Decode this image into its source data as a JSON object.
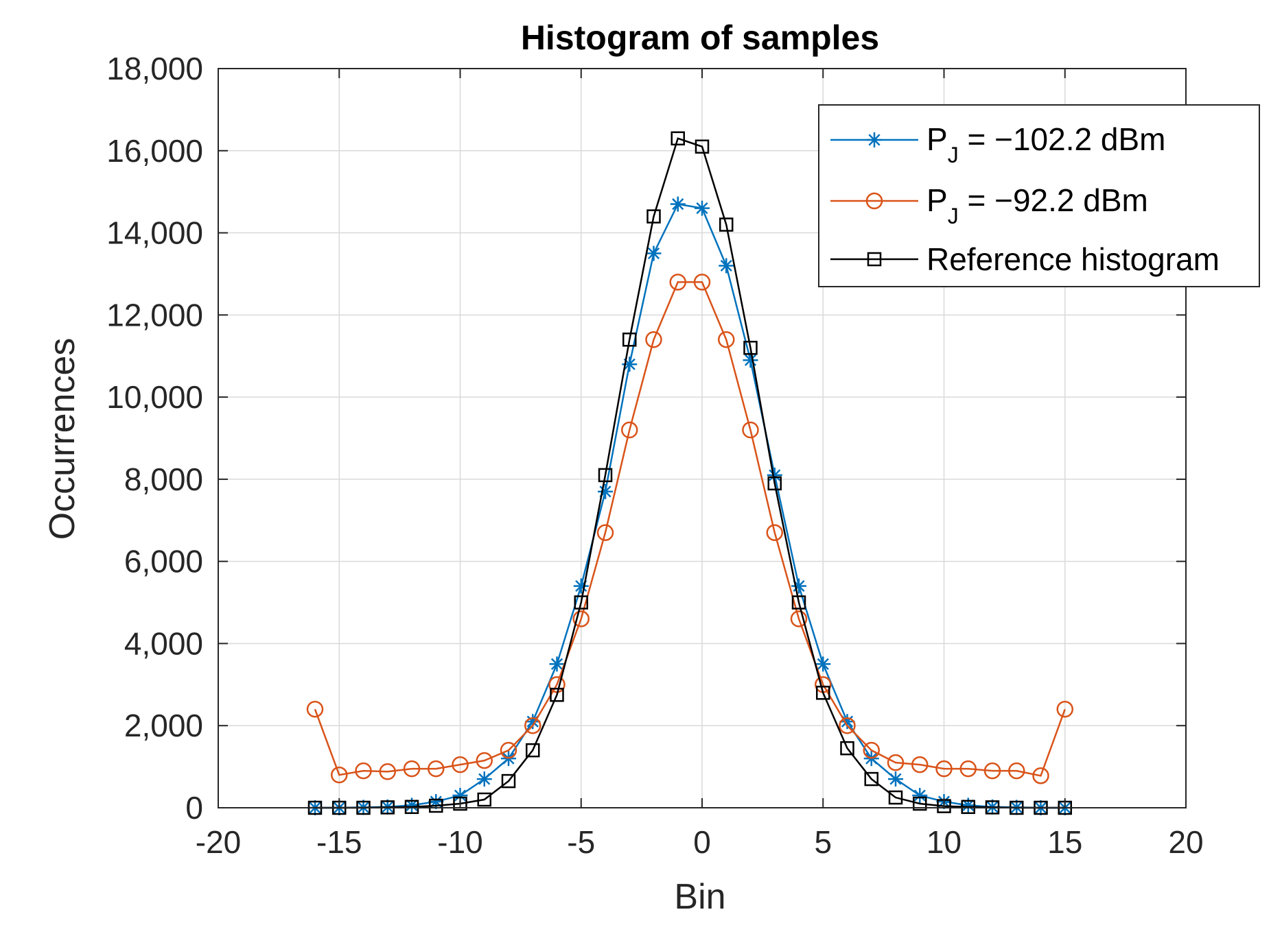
{
  "chart_data": {
    "type": "line",
    "title": "Histogram of samples",
    "xlabel": "Bin",
    "ylabel": "Occurrences",
    "xlim": [
      -20,
      20
    ],
    "ylim": [
      0,
      18000
    ],
    "xticks": [
      -20,
      -15,
      -10,
      -5,
      0,
      5,
      10,
      15,
      20
    ],
    "yticks": [
      0,
      2000,
      4000,
      6000,
      8000,
      10000,
      12000,
      14000,
      16000,
      18000
    ],
    "xtick_labels": [
      "-20",
      "-15",
      "-10",
      "-5",
      "0",
      "5",
      "10",
      "15",
      "20"
    ],
    "ytick_labels": [
      "0",
      "2,000",
      "4,000",
      "6,000",
      "8,000",
      "10,000",
      "12,000",
      "14,000",
      "16,000",
      "18,000"
    ],
    "grid": true,
    "legend_position": "top-right",
    "x": [
      -16,
      -15,
      -14,
      -13,
      -12,
      -11,
      -10,
      -9,
      -8,
      -7,
      -6,
      -5,
      -4,
      -3,
      -2,
      -1,
      0,
      1,
      2,
      3,
      4,
      5,
      6,
      7,
      8,
      9,
      10,
      11,
      12,
      13,
      14,
      15
    ],
    "series": [
      {
        "name": "P_J = −102.2 dBm",
        "legend_main": "P",
        "legend_sub": "J",
        "legend_rest": " = −102.2 dBm",
        "color": "#0072BD",
        "marker": "asterisk",
        "values": [
          0,
          0,
          10,
          20,
          60,
          150,
          300,
          700,
          1200,
          2100,
          3500,
          5400,
          7700,
          10800,
          13500,
          14700,
          14600,
          13200,
          10900,
          8100,
          5400,
          3500,
          2100,
          1200,
          700,
          300,
          150,
          60,
          20,
          10,
          0,
          0
        ]
      },
      {
        "name": "P_J = −92.2 dBm",
        "legend_main": "P",
        "legend_sub": "J",
        "legend_rest": " = −92.2 dBm",
        "color": "#D95319",
        "marker": "circle",
        "values": [
          2400,
          800,
          900,
          880,
          950,
          950,
          1050,
          1150,
          1400,
          2000,
          3000,
          4600,
          6700,
          9200,
          11400,
          12800,
          12800,
          11400,
          9200,
          6700,
          4600,
          3000,
          2000,
          1400,
          1100,
          1050,
          950,
          950,
          900,
          900,
          780,
          2400
        ]
      },
      {
        "name": "Reference histogram",
        "legend_main": "Reference histogram",
        "legend_sub": "",
        "legend_rest": "",
        "color": "#000000",
        "marker": "square",
        "values": [
          0,
          0,
          0,
          10,
          20,
          50,
          100,
          200,
          650,
          1400,
          2750,
          5000,
          8100,
          11400,
          14400,
          16300,
          16100,
          14200,
          11200,
          7900,
          5000,
          2800,
          1450,
          700,
          250,
          100,
          40,
          20,
          10,
          0,
          0,
          0
        ]
      }
    ]
  }
}
